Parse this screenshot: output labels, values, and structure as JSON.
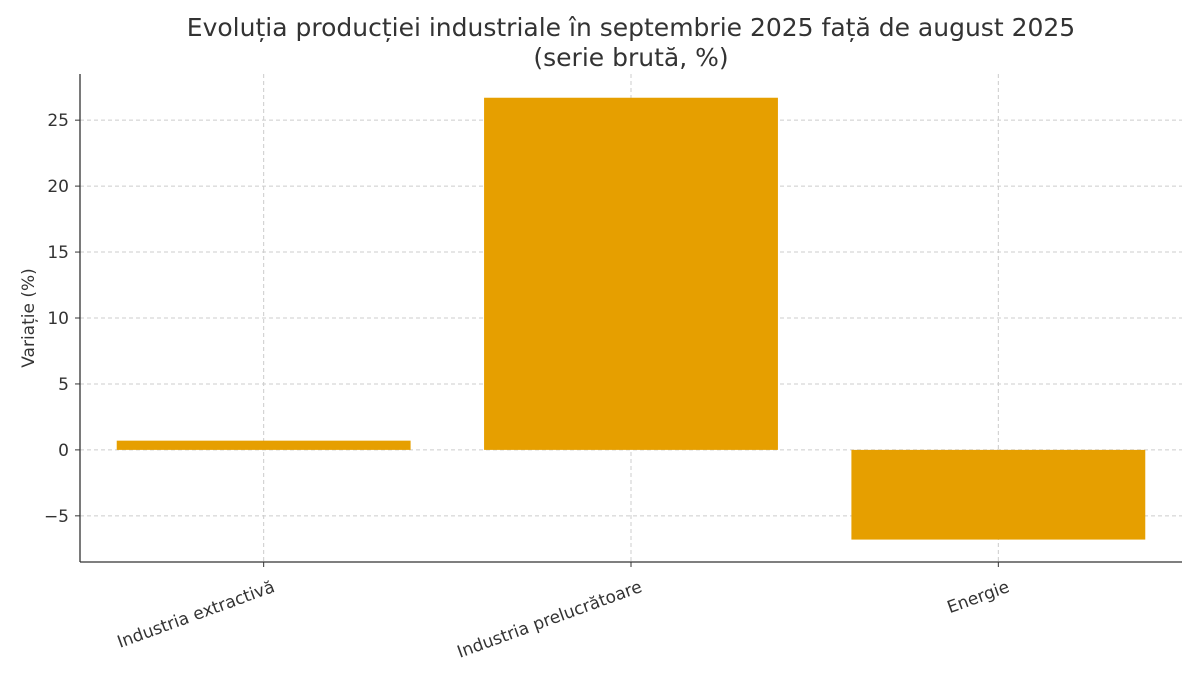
{
  "chart_data": {
    "type": "bar",
    "title": "Evoluția producției industriale în septembrie 2025 față de august 2025",
    "subtitle": "(serie brută, %)",
    "xlabel": "",
    "ylabel": "Variație (%)",
    "categories": [
      "Industria extractivă",
      "Industria prelucrătoare",
      "Energie"
    ],
    "values": [
      0.7,
      26.7,
      -6.8
    ],
    "ylim": [
      -8.5,
      28.5
    ],
    "yticks": [
      -5,
      0,
      5,
      10,
      15,
      20,
      25
    ],
    "ytick_labels": [
      "−5",
      "0",
      "5",
      "10",
      "15",
      "20",
      "25"
    ],
    "grid": true,
    "bar_color": "#E69F00",
    "text_color": "#333333",
    "grid_color": "#cccccc"
  }
}
